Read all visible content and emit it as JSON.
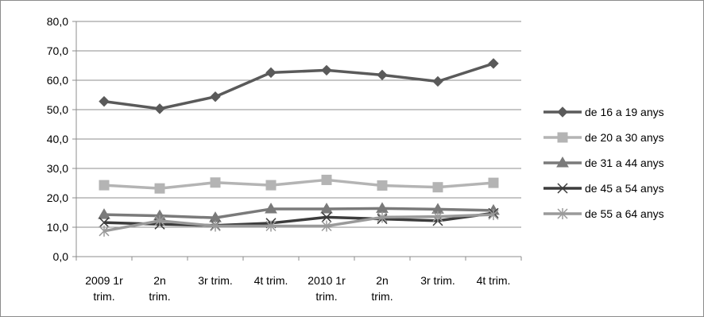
{
  "chart_data": {
    "type": "line",
    "title": "",
    "xlabel": "",
    "ylabel": "",
    "ylim": [
      0,
      80
    ],
    "ytick_step": 10,
    "ytick_labels": [
      "0,0",
      "10,0",
      "20,0",
      "30,0",
      "40,0",
      "50,0",
      "60,0",
      "70,0",
      "80,0"
    ],
    "grid": true,
    "legend_position": "right",
    "categories": [
      [
        "2009 1r",
        "trim."
      ],
      [
        "2n",
        "trim."
      ],
      [
        "3r trim."
      ],
      [
        "4t trim."
      ],
      [
        "2010 1r",
        "trim."
      ],
      [
        "2n",
        "trim."
      ],
      [
        "3r trim."
      ],
      [
        "4t trim."
      ]
    ],
    "series": [
      {
        "name": "de 16 a 19 anys",
        "color": "#5a5a5a",
        "marker": "diamond",
        "values": [
          52.8,
          50.3,
          54.4,
          62.6,
          63.4,
          61.8,
          59.6,
          65.7
        ]
      },
      {
        "name": "de 20 a 30 anys",
        "color": "#b4b4b4",
        "marker": "square",
        "values": [
          24.3,
          23.2,
          25.2,
          24.3,
          26.1,
          24.2,
          23.6,
          25.1
        ]
      },
      {
        "name": "de 31 a 44 anys",
        "color": "#7a7a7a",
        "marker": "triangle",
        "values": [
          14.3,
          13.9,
          13.2,
          16.2,
          16.2,
          16.4,
          16.1,
          15.7
        ]
      },
      {
        "name": "de 45 a 54 anys",
        "color": "#3c3c3c",
        "marker": "x",
        "values": [
          11.6,
          11.0,
          10.6,
          11.4,
          13.4,
          12.8,
          12.2,
          14.8
        ]
      },
      {
        "name": "de 55 a 64 anys",
        "color": "#9a9a9a",
        "marker": "star",
        "values": [
          8.7,
          12.2,
          10.4,
          10.4,
          10.4,
          13.4,
          13.6,
          14.3
        ]
      }
    ]
  }
}
